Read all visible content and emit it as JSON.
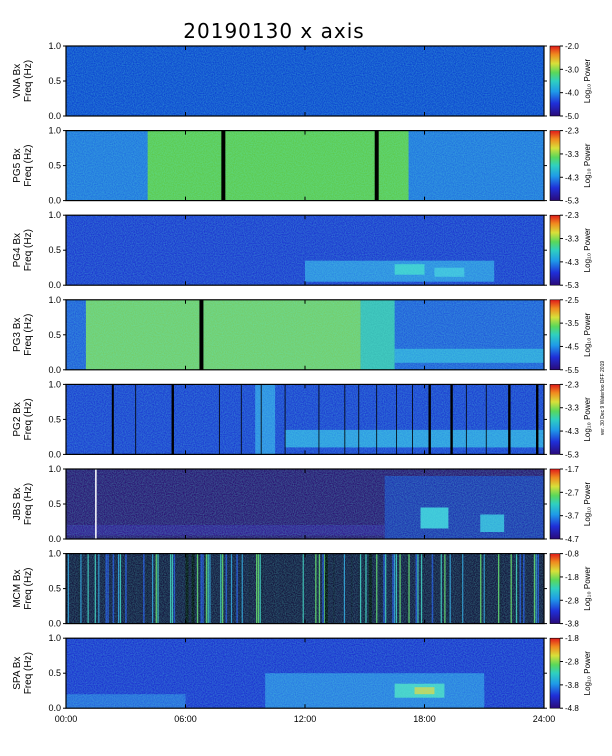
{
  "chart_data": {
    "type": "heatmap",
    "title": "20190130 x axis",
    "x_ticks": [
      "00:00",
      "06:00",
      "12:00",
      "18:00",
      "24:00"
    ],
    "xlim_hours": [
      0,
      24
    ],
    "y_ticks": [
      "0.0",
      "0.5",
      "1.0"
    ],
    "ylim_hz": [
      0,
      1.0
    ],
    "colorbar_label": "Log₁₀ Power",
    "credit": "ver. 30 Dec 9 Waterloo DFF 2019",
    "panels": [
      {
        "station": "VNA Bx",
        "ylabel": "Freq (Hz)",
        "cbar_ticks": [
          "-2.0",
          "-3.0",
          "-4.0",
          "-5.0"
        ],
        "bg": "#0a3fd1",
        "patches": [],
        "gaps": []
      },
      {
        "station": "PG5 Bx",
        "ylabel": "Freq (Hz)",
        "cbar_ticks": [
          "-2.3",
          "-3.3",
          "-4.3",
          "-5.3"
        ],
        "bg": "#1f6ee0",
        "patches": [
          {
            "t0": 4.1,
            "t1": 17.2,
            "f0": 0.0,
            "f1": 1.0,
            "color": "#66d23a"
          }
        ],
        "gaps": [
          {
            "t": 7.8,
            "w": 0.2
          },
          {
            "t": 15.5,
            "w": 0.2
          }
        ]
      },
      {
        "station": "PG4 Bx",
        "ylabel": "Freq (Hz)",
        "cbar_ticks": [
          "-2.3",
          "-3.3",
          "-4.3",
          "-5.3"
        ],
        "bg": "#1a2fd0",
        "patches": [
          {
            "t0": 12.0,
            "t1": 21.5,
            "f0": 0.05,
            "f1": 0.35,
            "color": "#2e8fe6"
          },
          {
            "t0": 16.5,
            "t1": 18.0,
            "f0": 0.15,
            "f1": 0.3,
            "color": "#3fcfcf"
          },
          {
            "t0": 18.5,
            "t1": 20.0,
            "f0": 0.12,
            "f1": 0.25,
            "color": "#3fbfe0"
          }
        ],
        "gaps": []
      },
      {
        "station": "PG3 Bx",
        "ylabel": "Freq (Hz)",
        "cbar_ticks": [
          "-2.5",
          "-3.5",
          "-4.5",
          "-5.5"
        ],
        "bg": "#1f55db",
        "patches": [
          {
            "t0": 1.0,
            "t1": 14.8,
            "f0": 0.0,
            "f1": 1.0,
            "color": "#7fd85a"
          },
          {
            "t0": 14.8,
            "t1": 16.5,
            "f0": 0.0,
            "f1": 1.0,
            "color": "#3bc5b0"
          },
          {
            "t0": 16.5,
            "t1": 24.0,
            "f0": 0.1,
            "f1": 0.3,
            "color": "#2fa3e0"
          }
        ],
        "gaps": [
          {
            "t": 6.7,
            "w": 0.2
          }
        ]
      },
      {
        "station": "PG2 Bx",
        "ylabel": "Freq (Hz)",
        "cbar_ticks": [
          "-2.3",
          "-3.3",
          "-4.3",
          "-5.3"
        ],
        "bg": "#1a35d2",
        "patches": [
          {
            "t0": 9.5,
            "t1": 10.5,
            "f0": 0.0,
            "f1": 1.0,
            "color": "#2f8fe8"
          },
          {
            "t0": 11.0,
            "t1": 24.0,
            "f0": 0.1,
            "f1": 0.35,
            "color": "#2f9fe6"
          }
        ],
        "gaps": [
          {
            "t": 2.3,
            "w": 0.1
          },
          {
            "t": 5.3,
            "w": 0.12
          },
          {
            "t": 18.2,
            "w": 0.12
          },
          {
            "t": 19.3,
            "w": 0.12
          },
          {
            "t": 22.2,
            "w": 0.12
          },
          {
            "t": 23.6,
            "w": 0.12
          }
        ],
        "thin_lines": [
          3.5,
          7.7,
          8.8,
          9.8,
          11.0,
          12.7,
          14.0,
          14.7,
          15.6,
          16.6,
          17.4,
          20.1,
          21.1
        ]
      },
      {
        "station": "JBS Bx",
        "ylabel": "Freq (Hz)",
        "cbar_ticks": [
          "-1.7",
          "-2.7",
          "-3.7",
          "-4.7"
        ],
        "bg": "#2a0a6e",
        "patches": [
          {
            "t0": 16.0,
            "t1": 24.0,
            "f0": 0.0,
            "f1": 0.9,
            "color": "#1c2fb5"
          },
          {
            "t0": 17.8,
            "t1": 19.2,
            "f0": 0.15,
            "f1": 0.45,
            "color": "#3fd0df"
          },
          {
            "t0": 20.8,
            "t1": 22.0,
            "f0": 0.1,
            "f1": 0.35,
            "color": "#36b8e0"
          },
          {
            "t0": 0.0,
            "t1": 16.0,
            "f0": 0.05,
            "f1": 0.2,
            "color": "#321290"
          }
        ],
        "white_lines": [
          1.5
        ]
      },
      {
        "station": "MCM Bx",
        "ylabel": "Freq (Hz)",
        "cbar_ticks": [
          "-0.8",
          "-1.8",
          "-2.8",
          "-3.8"
        ],
        "bg": "#120a36",
        "patches": [],
        "stripes": true
      },
      {
        "station": "SPA Bx",
        "ylabel": "Freq (Hz)",
        "cbar_ticks": [
          "-1.8",
          "-2.8",
          "-3.8",
          "-4.8"
        ],
        "bg": "#1a2ad0",
        "patches": [
          {
            "t0": 10.0,
            "t1": 21.0,
            "f0": 0.0,
            "f1": 0.5,
            "color": "#2a7ee4"
          },
          {
            "t0": 16.5,
            "t1": 19.0,
            "f0": 0.15,
            "f1": 0.35,
            "color": "#4ad6c6"
          },
          {
            "t0": 17.5,
            "t1": 18.5,
            "f0": 0.2,
            "f1": 0.3,
            "color": "#d9d24a"
          },
          {
            "t0": 0.0,
            "t1": 6.0,
            "f0": 0.0,
            "f1": 0.2,
            "color": "#2767df"
          }
        ],
        "gaps": []
      }
    ]
  }
}
